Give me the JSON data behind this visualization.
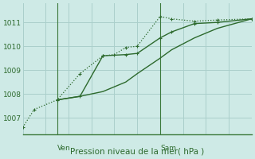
{
  "xlabel": "Pression niveau de la mer( hPa )",
  "bg_color": "#ceeae6",
  "grid_color": "#aacfcb",
  "line_color": "#2d6a2d",
  "spine_color": "#3d7a3d",
  "tick_color": "#2d6a2d",
  "ylim": [
    1006.3,
    1011.8
  ],
  "yticks": [
    1007,
    1008,
    1009,
    1010,
    1011
  ],
  "xlim": [
    0,
    10
  ],
  "ven_x": 1.5,
  "sam_x": 6.0,
  "series1_x": [
    0.0,
    0.5,
    1.5,
    2.5,
    3.5,
    4.0,
    4.5,
    5.0,
    6.0,
    6.5,
    7.5,
    8.5,
    10.0
  ],
  "series1_y": [
    1006.6,
    1007.35,
    1007.75,
    1008.85,
    1009.6,
    1009.65,
    1009.95,
    1010.0,
    1011.25,
    1011.15,
    1011.05,
    1011.1,
    1011.15
  ],
  "series2_x": [
    1.5,
    2.5,
    3.5,
    4.5,
    5.0,
    6.0,
    6.5,
    7.5,
    8.5,
    10.0
  ],
  "series2_y": [
    1007.75,
    1007.9,
    1009.6,
    1009.65,
    1009.7,
    1010.35,
    1010.6,
    1010.95,
    1011.0,
    1011.15
  ],
  "series3_x": [
    1.5,
    2.5,
    3.5,
    4.5,
    5.0,
    6.0,
    6.5,
    7.5,
    8.5,
    10.0
  ],
  "series3_y": [
    1007.75,
    1007.9,
    1008.1,
    1008.5,
    1008.85,
    1009.5,
    1009.85,
    1010.35,
    1010.75,
    1011.15
  ]
}
